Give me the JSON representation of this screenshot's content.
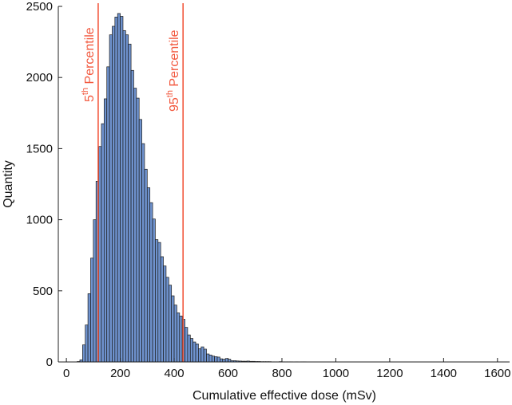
{
  "chart_data": {
    "type": "bar",
    "subtype": "histogram",
    "xlabel": "Cumulative effective dose (mSv)",
    "ylabel": "Quantity",
    "xlim": [
      -30,
      1645
    ],
    "ylim": [
      0,
      2500
    ],
    "xticks": [
      0,
      200,
      400,
      600,
      800,
      1000,
      1200,
      1400,
      1600
    ],
    "yticks": [
      0,
      500,
      1000,
      1500,
      2000,
      2500
    ],
    "grid": false,
    "bin_width": 10,
    "bin_starts": [
      40,
      50,
      60,
      70,
      80,
      90,
      100,
      110,
      120,
      130,
      140,
      150,
      160,
      170,
      180,
      190,
      200,
      210,
      220,
      230,
      240,
      250,
      260,
      270,
      280,
      290,
      300,
      310,
      320,
      330,
      340,
      350,
      360,
      370,
      380,
      390,
      400,
      410,
      420,
      430,
      440,
      450,
      460,
      470,
      480,
      490,
      500,
      510,
      520,
      530,
      540,
      550,
      560,
      570,
      580,
      590,
      600,
      610,
      620,
      630,
      640,
      650,
      660,
      670,
      680,
      690,
      700,
      710,
      720,
      730,
      740,
      750,
      760,
      770,
      780,
      790,
      800,
      810,
      820,
      830,
      840,
      850,
      860,
      870,
      880
    ],
    "values": [
      3,
      15,
      120,
      260,
      480,
      730,
      1000,
      1270,
      1515,
      1675,
      1850,
      2075,
      2300,
      2360,
      2425,
      2450,
      2430,
      2330,
      2300,
      2235,
      2050,
      1925,
      1855,
      1705,
      1535,
      1355,
      1225,
      1120,
      1005,
      860,
      840,
      740,
      675,
      595,
      540,
      465,
      400,
      345,
      323,
      300,
      243,
      190,
      165,
      140,
      127,
      93,
      106,
      90,
      56,
      49,
      41,
      37,
      34,
      22,
      19,
      24,
      19,
      9,
      9,
      7,
      6,
      5,
      5,
      6,
      4,
      4,
      3,
      3,
      2,
      2,
      2,
      2,
      1,
      1,
      1,
      2,
      1,
      1,
      1,
      1,
      0,
      1,
      0,
      1,
      1
    ],
    "bar_color": "#6f93cf",
    "bar_edge_color": "#1a1a1a",
    "reference_lines": [
      {
        "x": 118,
        "label_base": "5",
        "label_sup": "th",
        "label_rest": " Percentile",
        "color": "#f2583e"
      },
      {
        "x": 433,
        "label_base": "95",
        "label_sup": "th",
        "label_rest": " Percentile",
        "color": "#f2583e"
      }
    ]
  }
}
